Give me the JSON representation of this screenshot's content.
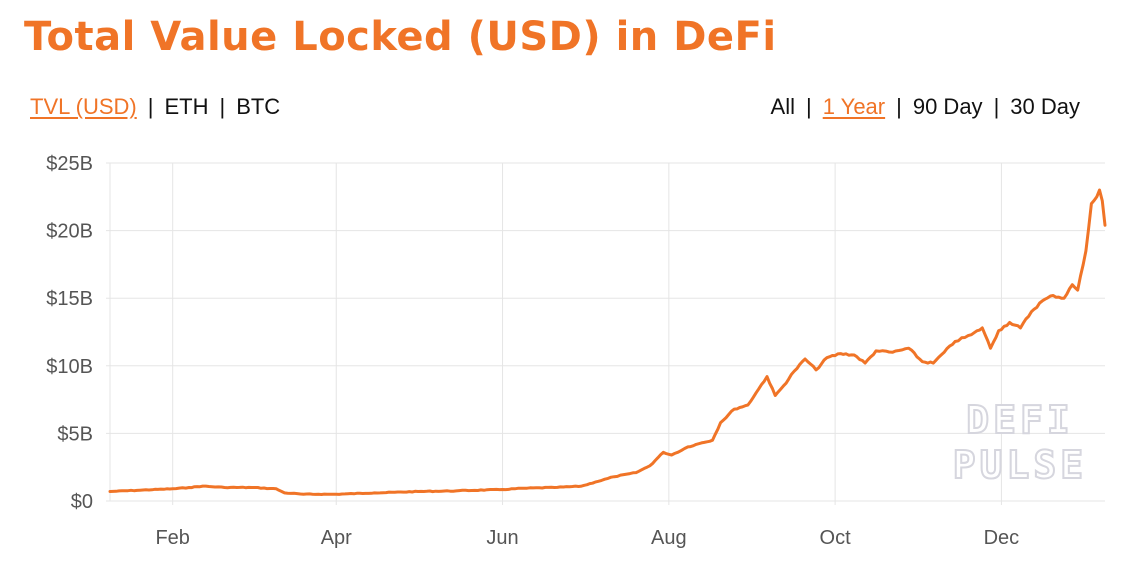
{
  "title": "Total Value Locked (USD) in DeFi",
  "metric_toggle": {
    "options": [
      {
        "label": "TVL (USD)",
        "active": true
      },
      {
        "label": "ETH",
        "active": false
      },
      {
        "label": "BTC",
        "active": false
      }
    ]
  },
  "range_toggle": {
    "options": [
      {
        "label": "All",
        "active": false
      },
      {
        "label": "1 Year",
        "active": true
      },
      {
        "label": "90 Day",
        "active": false
      },
      {
        "label": "30 Day",
        "active": false
      }
    ]
  },
  "separator": "|",
  "watermark": {
    "line1": "DEFI",
    "line2": "PULSE"
  },
  "colors": {
    "accent": "#f07427",
    "grid": "#e5e5e5",
    "axis_text": "#555555",
    "watermark": "#dcdce2"
  },
  "chart_data": {
    "type": "line",
    "title": "Total Value Locked (USD) in DeFi",
    "xlabel": "",
    "ylabel": "",
    "x_ticks": [
      "Feb",
      "Apr",
      "Jun",
      "Aug",
      "Oct",
      "Dec"
    ],
    "y_ticks": [
      "$0",
      "$5B",
      "$10B",
      "$15B",
      "$20B",
      "$25B"
    ],
    "xlim": [
      "2020-01-09",
      "2021-01-08"
    ],
    "ylim": [
      0,
      25
    ],
    "y_unit": "billions USD",
    "grid": true,
    "series": [
      {
        "color": "#f07427",
        "points": [
          [
            "2020-01-09",
            0.7
          ],
          [
            "2020-01-20",
            0.8
          ],
          [
            "2020-02-01",
            0.9
          ],
          [
            "2020-02-07",
            1.0
          ],
          [
            "2020-02-12",
            1.1
          ],
          [
            "2020-02-20",
            1.0
          ],
          [
            "2020-03-01",
            1.0
          ],
          [
            "2020-03-10",
            0.9
          ],
          [
            "2020-03-13",
            0.6
          ],
          [
            "2020-03-20",
            0.5
          ],
          [
            "2020-04-01",
            0.5
          ],
          [
            "2020-04-15",
            0.6
          ],
          [
            "2020-05-01",
            0.7
          ],
          [
            "2020-05-15",
            0.75
          ],
          [
            "2020-06-01",
            0.85
          ],
          [
            "2020-06-10",
            0.95
          ],
          [
            "2020-06-20",
            1.0
          ],
          [
            "2020-06-30",
            1.1
          ],
          [
            "2020-07-05",
            1.4
          ],
          [
            "2020-07-12",
            1.8
          ],
          [
            "2020-07-20",
            2.1
          ],
          [
            "2020-07-25",
            2.6
          ],
          [
            "2020-07-30",
            3.6
          ],
          [
            "2020-08-02",
            3.4
          ],
          [
            "2020-08-08",
            4.0
          ],
          [
            "2020-08-13",
            4.3
          ],
          [
            "2020-08-17",
            4.5
          ],
          [
            "2020-08-20",
            5.8
          ],
          [
            "2020-08-25",
            6.8
          ],
          [
            "2020-08-30",
            7.1
          ],
          [
            "2020-09-03",
            8.3
          ],
          [
            "2020-09-06",
            9.2
          ],
          [
            "2020-09-09",
            7.8
          ],
          [
            "2020-09-12",
            8.5
          ],
          [
            "2020-09-16",
            9.6
          ],
          [
            "2020-09-20",
            10.5
          ],
          [
            "2020-09-24",
            9.7
          ],
          [
            "2020-09-28",
            10.6
          ],
          [
            "2020-10-03",
            10.9
          ],
          [
            "2020-10-08",
            10.8
          ],
          [
            "2020-10-12",
            10.2
          ],
          [
            "2020-10-16",
            11.1
          ],
          [
            "2020-10-22",
            11.0
          ],
          [
            "2020-10-28",
            11.3
          ],
          [
            "2020-11-02",
            10.3
          ],
          [
            "2020-11-06",
            10.2
          ],
          [
            "2020-11-10",
            11.0
          ],
          [
            "2020-11-14",
            11.8
          ],
          [
            "2020-11-20",
            12.3
          ],
          [
            "2020-11-24",
            12.8
          ],
          [
            "2020-11-27",
            11.3
          ],
          [
            "2020-11-30",
            12.6
          ],
          [
            "2020-12-04",
            13.2
          ],
          [
            "2020-12-08",
            12.8
          ],
          [
            "2020-12-12",
            14.0
          ],
          [
            "2020-12-16",
            14.8
          ],
          [
            "2020-12-20",
            15.2
          ],
          [
            "2020-12-24",
            15.0
          ],
          [
            "2020-12-27",
            16.0
          ],
          [
            "2020-12-29",
            15.6
          ],
          [
            "2021-01-01",
            18.5
          ],
          [
            "2021-01-03",
            22.0
          ],
          [
            "2021-01-05",
            22.5
          ],
          [
            "2021-01-06",
            23.0
          ],
          [
            "2021-01-07",
            22.2
          ],
          [
            "2021-01-08",
            20.4
          ]
        ]
      }
    ]
  }
}
